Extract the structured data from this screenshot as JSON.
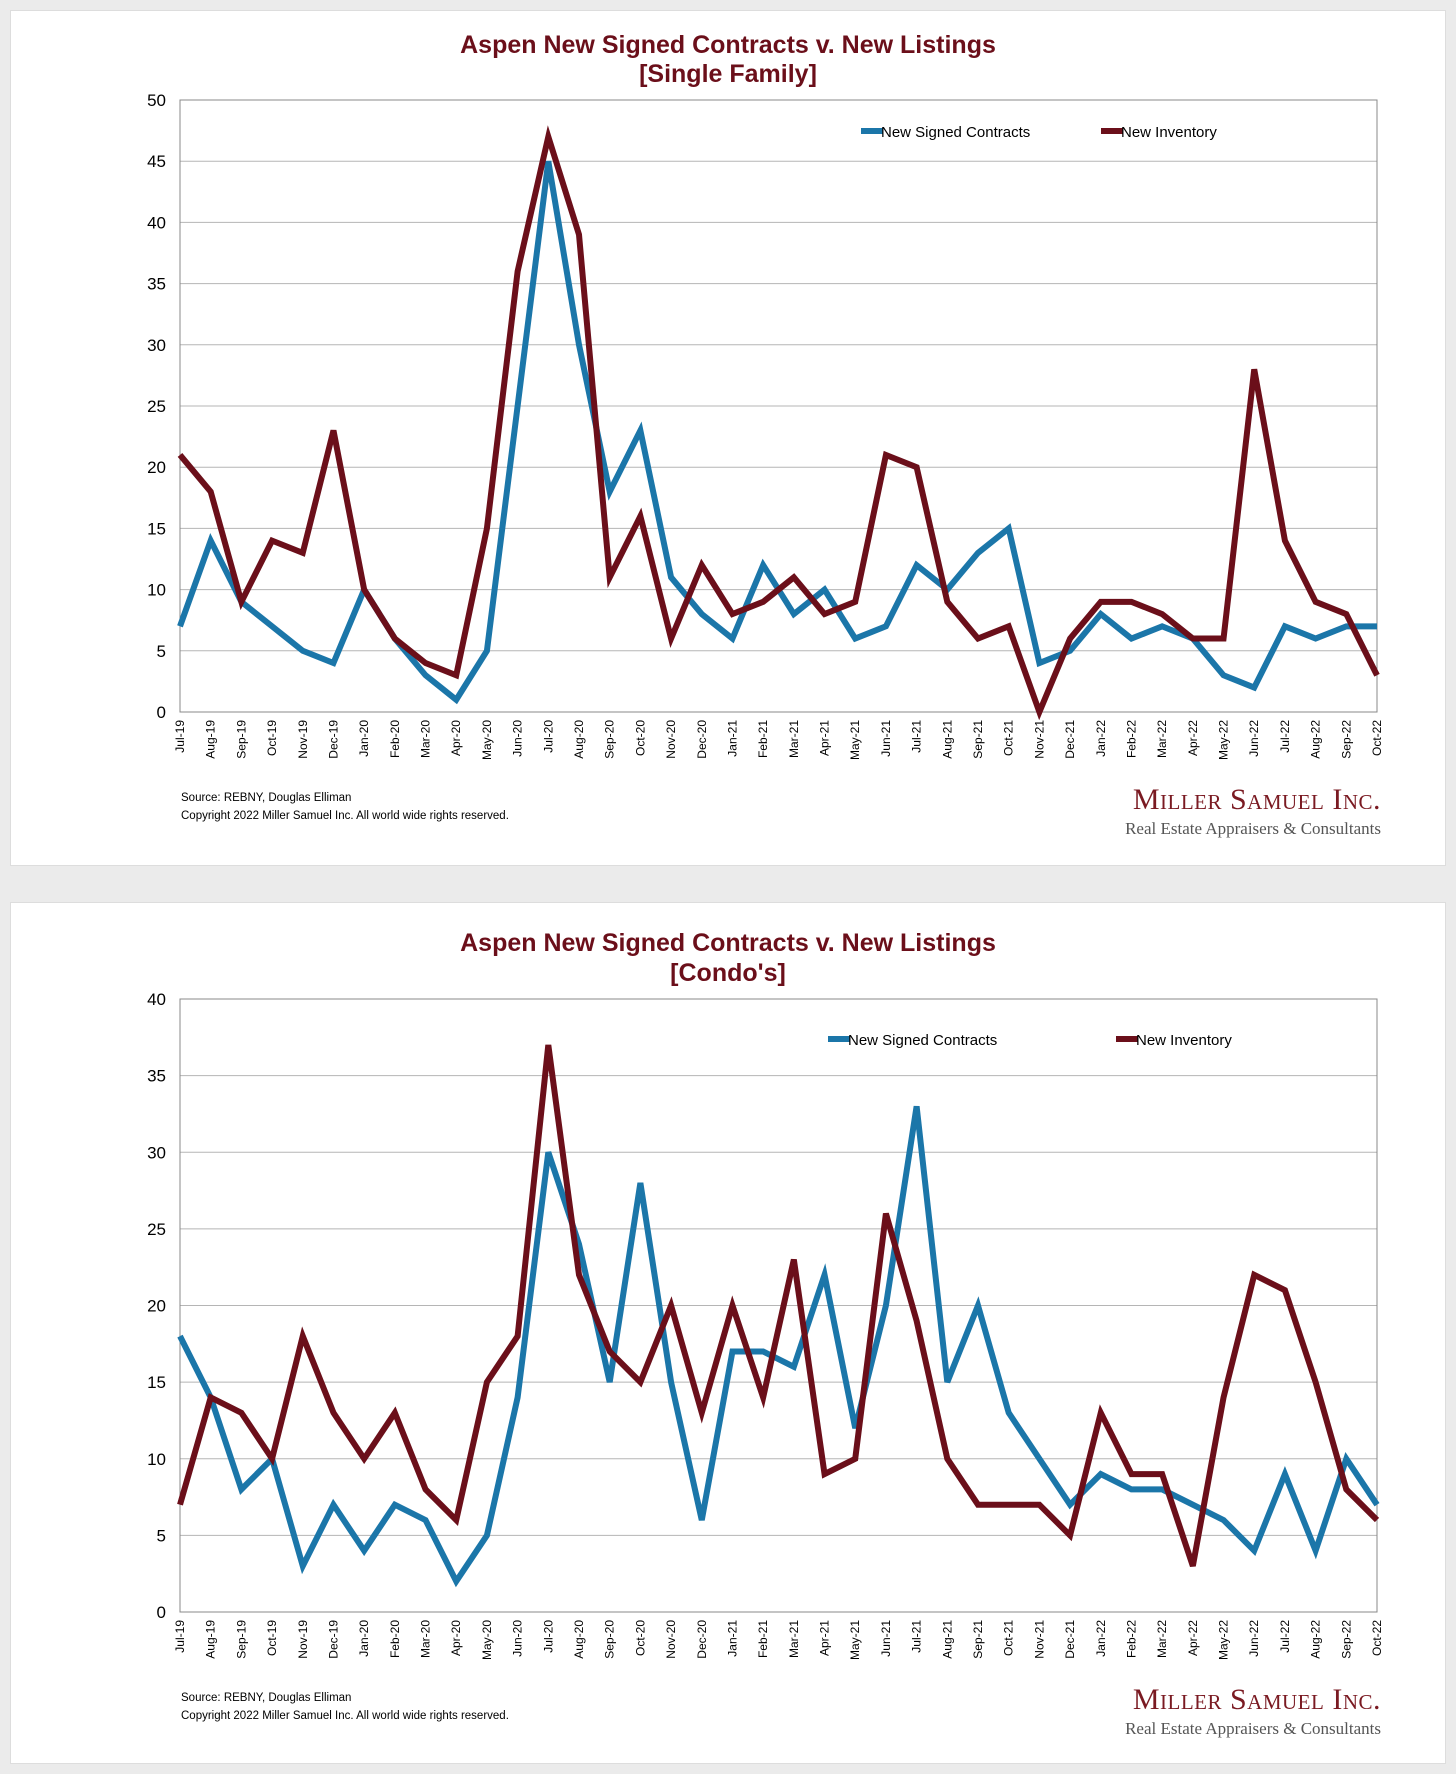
{
  "colors": {
    "contracts": "#1b76a9",
    "inventory": "#6b0f1a",
    "title": "#6b0f1a"
  },
  "chart_data": [
    {
      "type": "line",
      "title": "Aspen New Signed Contracts v. New Listings",
      "subtitle": "[Single Family]",
      "ylim": [
        0,
        50
      ],
      "yticks": [
        0,
        5,
        10,
        15,
        20,
        25,
        30,
        35,
        40,
        45,
        50
      ],
      "grid": true,
      "legend": "top-right",
      "categories": [
        "Jul-19",
        "Aug-19",
        "Sep-19",
        "Oct-19",
        "Nov-19",
        "Dec-19",
        "Jan-20",
        "Feb-20",
        "Mar-20",
        "Apr-20",
        "May-20",
        "Jun-20",
        "Jul-20",
        "Aug-20",
        "Sep-20",
        "Oct-20",
        "Nov-20",
        "Dec-20",
        "Jan-21",
        "Feb-21",
        "Mar-21",
        "Apr-21",
        "May-21",
        "Jun-21",
        "Jul-21",
        "Aug-21",
        "Sep-21",
        "Oct-21",
        "Nov-21",
        "Dec-21",
        "Jan-22",
        "Feb-22",
        "Mar-22",
        "Apr-22",
        "May-22",
        "Jun-22",
        "Jul-22",
        "Aug-22",
        "Sep-22",
        "Oct-22"
      ],
      "series": [
        {
          "name": "New Signed Contracts",
          "values": [
            7,
            14,
            9,
            7,
            5,
            4,
            10,
            6,
            3,
            1,
            5,
            25,
            45,
            30,
            18,
            23,
            11,
            8,
            6,
            12,
            8,
            10,
            6,
            7,
            12,
            10,
            13,
            15,
            4,
            5,
            8,
            6,
            7,
            6,
            3,
            2,
            7,
            6,
            7,
            7
          ]
        },
        {
          "name": "New Inventory",
          "values": [
            21,
            18,
            9,
            14,
            13,
            23,
            10,
            6,
            4,
            3,
            15,
            36,
            47,
            39,
            11,
            16,
            6,
            12,
            8,
            9,
            11,
            8,
            9,
            21,
            20,
            9,
            6,
            7,
            0,
            6,
            9,
            9,
            8,
            6,
            6,
            28,
            14,
            9,
            8,
            3
          ]
        }
      ],
      "source": "Source: REBNY, Douglas Elliman",
      "copyright": "Copyright 2022 Miller Samuel Inc.  All world wide rights reserved."
    },
    {
      "type": "line",
      "title": "Aspen New Signed Contracts v. New Listings",
      "subtitle": "[Condo's]",
      "ylim": [
        0,
        40
      ],
      "yticks": [
        0,
        5,
        10,
        15,
        20,
        25,
        30,
        35,
        40
      ],
      "grid": true,
      "legend": "top-right",
      "categories": [
        "Jul-19",
        "Aug-19",
        "Sep-19",
        "Oct-19",
        "Nov-19",
        "Dec-19",
        "Jan-20",
        "Feb-20",
        "Mar-20",
        "Apr-20",
        "May-20",
        "Jun-20",
        "Jul-20",
        "Aug-20",
        "Sep-20",
        "Oct-20",
        "Nov-20",
        "Dec-20",
        "Jan-21",
        "Feb-21",
        "Mar-21",
        "Apr-21",
        "May-21",
        "Jun-21",
        "Jul-21",
        "Aug-21",
        "Sep-21",
        "Oct-21",
        "Nov-21",
        "Dec-21",
        "Jan-22",
        "Feb-22",
        "Mar-22",
        "Apr-22",
        "May-22",
        "Jun-22",
        "Jul-22",
        "Aug-22",
        "Sep-22",
        "Oct-22"
      ],
      "series": [
        {
          "name": "New Signed Contracts",
          "values": [
            18,
            14,
            8,
            10,
            3,
            7,
            4,
            7,
            6,
            2,
            5,
            14,
            30,
            24,
            15,
            28,
            15,
            6,
            17,
            17,
            16,
            22,
            12,
            20,
            33,
            15,
            20,
            13,
            10,
            7,
            9,
            8,
            8,
            7,
            6,
            4,
            9,
            4,
            10,
            7
          ]
        },
        {
          "name": "New Inventory",
          "values": [
            7,
            14,
            13,
            10,
            18,
            13,
            10,
            13,
            8,
            6,
            15,
            18,
            37,
            22,
            17,
            15,
            20,
            13,
            20,
            14,
            23,
            9,
            10,
            26,
            19,
            10,
            7,
            7,
            7,
            5,
            13,
            9,
            9,
            3,
            14,
            22,
            21,
            15,
            8,
            6
          ]
        }
      ],
      "source": "Source: REBNY, Douglas Elliman",
      "copyright": "Copyright 2022 Miller Samuel Inc.  All world wide rights reserved."
    }
  ],
  "logo": {
    "name": "Miller Samuel Inc.",
    "tagline": "Real Estate Appraisers & Consultants"
  }
}
